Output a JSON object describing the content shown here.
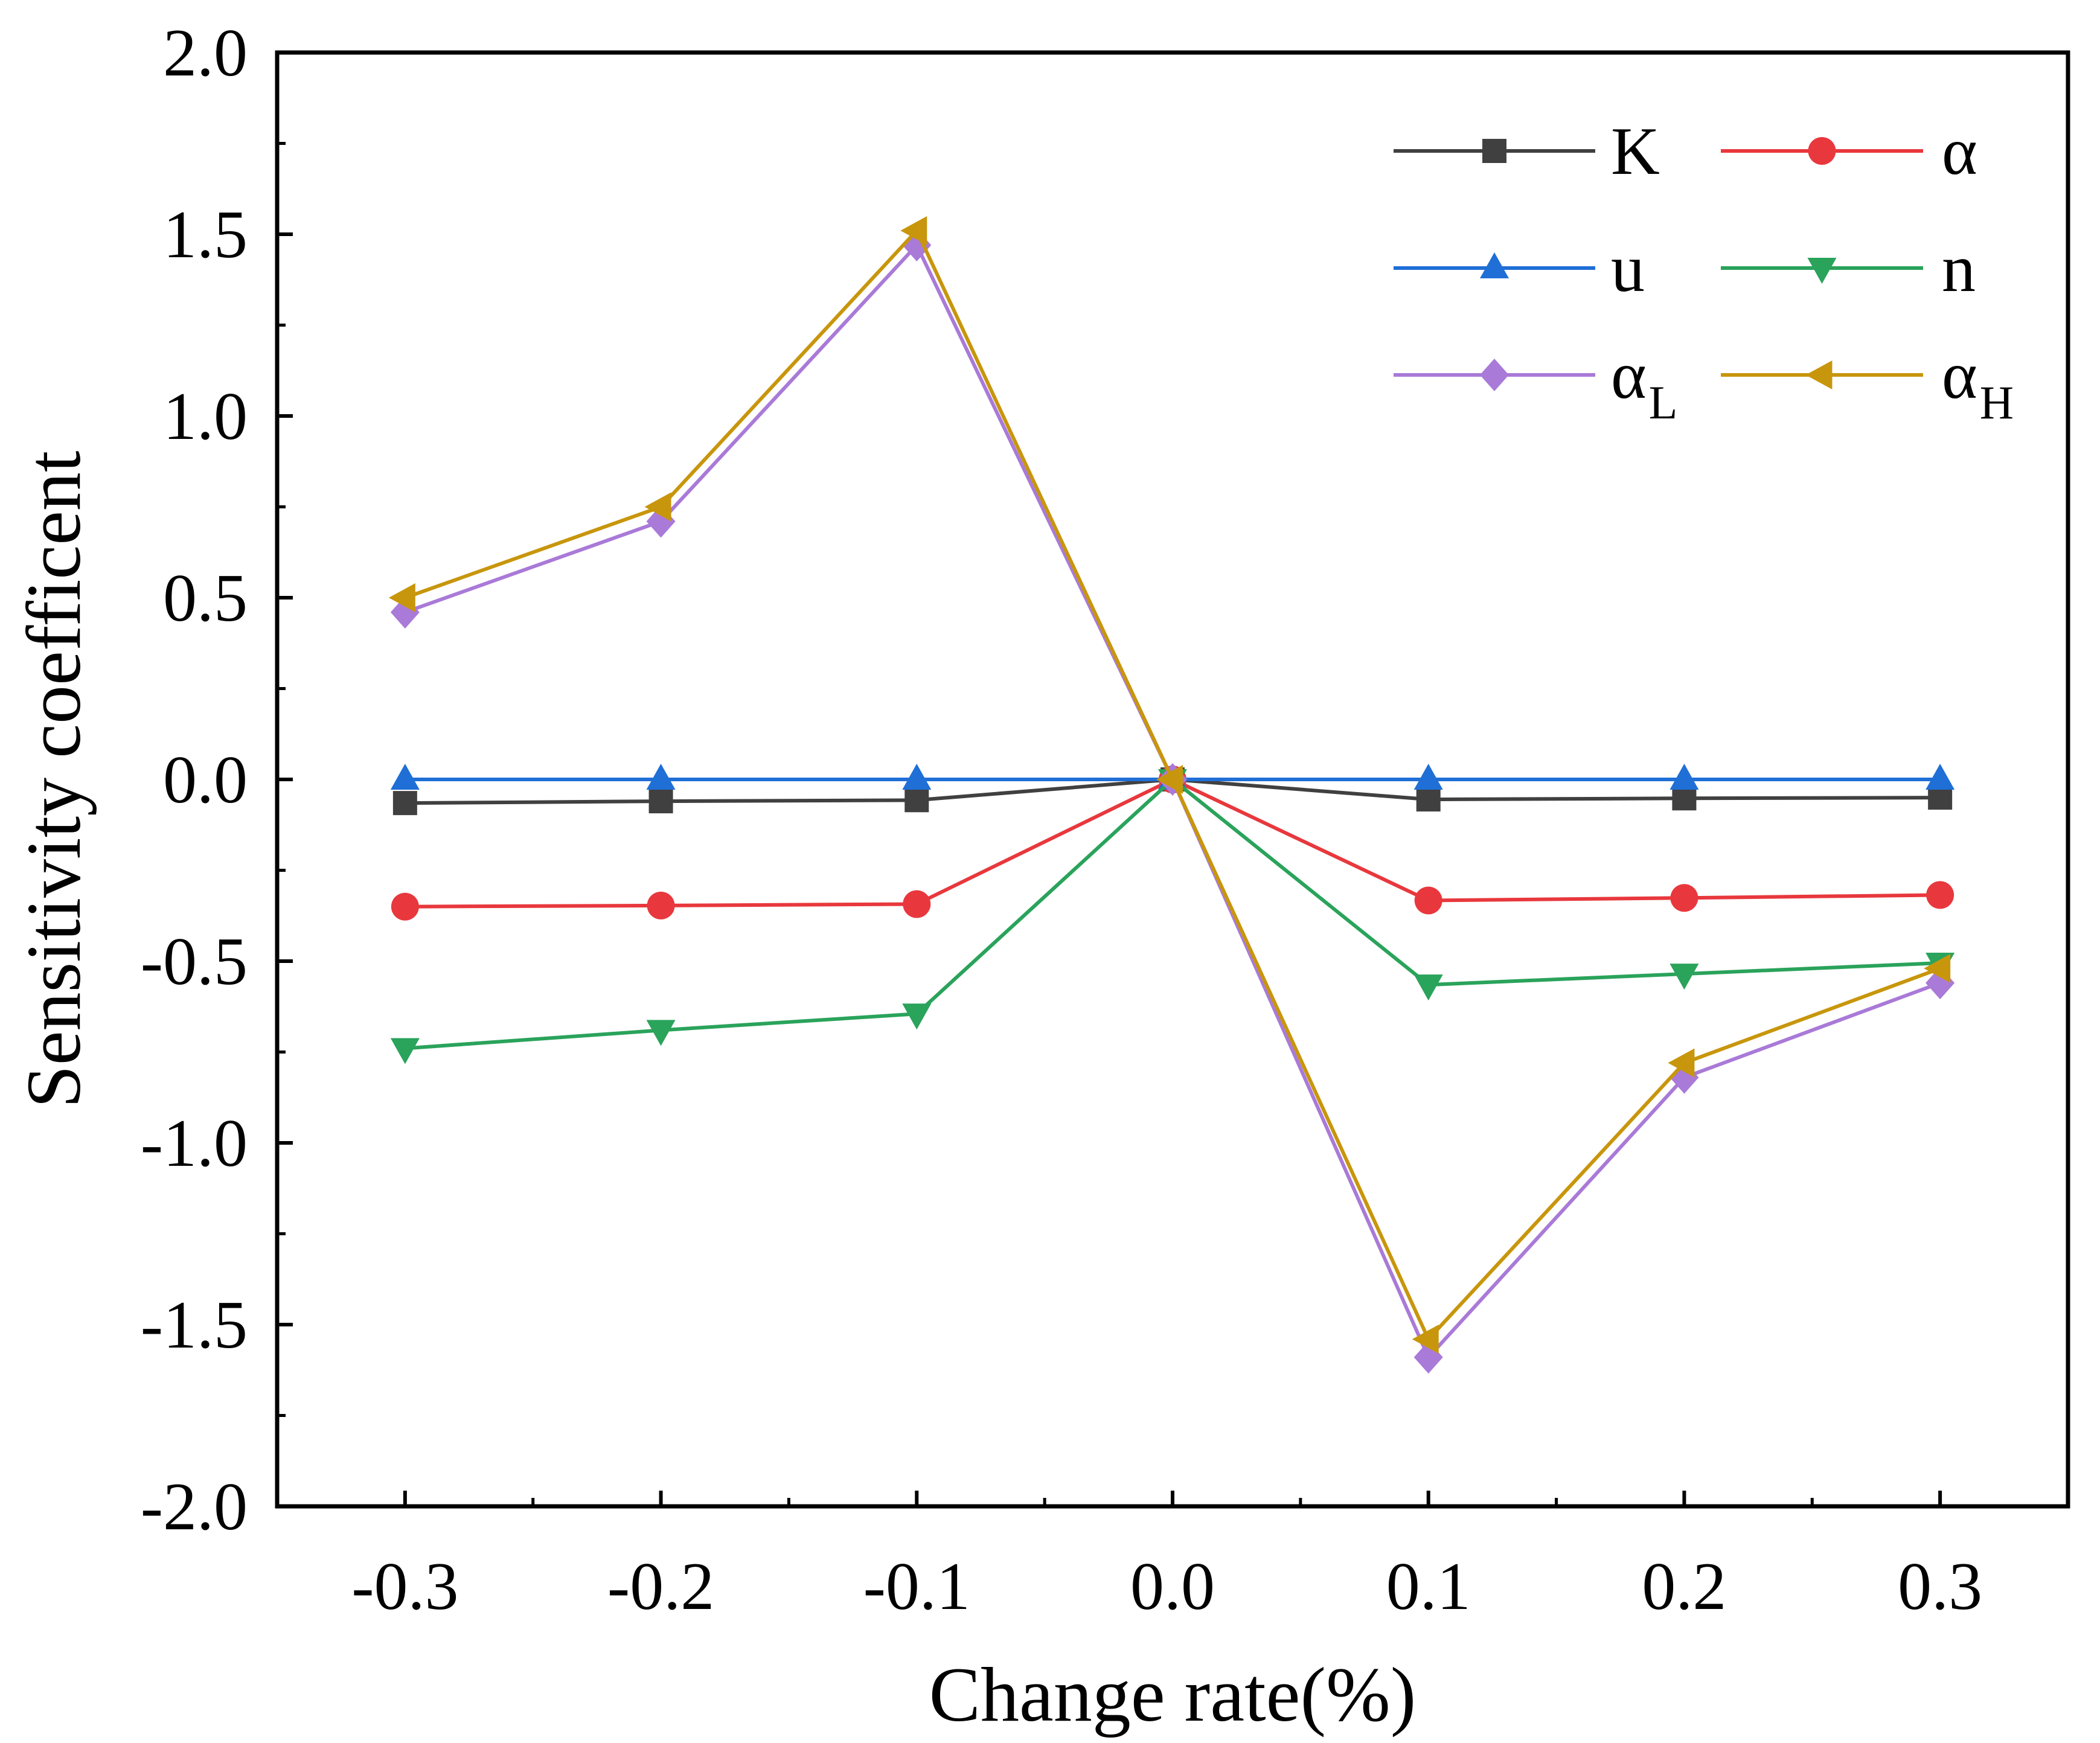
{
  "chart_data": {
    "type": "line",
    "title": "",
    "xlabel": "Change rate(%)",
    "ylabel": "Sensitivity coefficent",
    "x": [
      -0.3,
      -0.2,
      -0.1,
      0.0,
      0.1,
      0.2,
      0.3
    ],
    "x_tick_labels": [
      "-0.3",
      "-0.2",
      "-0.1",
      "0.0",
      "0.1",
      "0.2",
      "0.3"
    ],
    "y_tick_labels": [
      "2.0",
      "1.5",
      "1.0",
      "0.5",
      "0.0",
      "-0.5",
      "-1.0",
      "-1.5",
      "-2.0"
    ],
    "y_ticks": [
      2.0,
      1.5,
      1.0,
      0.5,
      0.0,
      -0.5,
      -1.0,
      -1.5,
      -2.0
    ],
    "xlim": [
      -0.35,
      0.35
    ],
    "ylim": [
      -2.0,
      2.0
    ],
    "grid": false,
    "legend_position": "top-right",
    "series": [
      {
        "name": "K",
        "sub": "",
        "color": "#404040",
        "marker": "square",
        "values": [
          -0.065,
          -0.06,
          -0.057,
          0.0,
          -0.055,
          -0.052,
          -0.05
        ]
      },
      {
        "name": "α",
        "sub": "",
        "color": "#e8383d",
        "marker": "circle",
        "values": [
          -0.35,
          -0.347,
          -0.343,
          0.0,
          -0.333,
          -0.326,
          -0.318
        ]
      },
      {
        "name": "u",
        "sub": "",
        "color": "#1f6fd6",
        "marker": "triangle-up",
        "values": [
          0.0,
          0.0,
          0.0,
          0.0,
          0.0,
          0.0,
          0.0
        ]
      },
      {
        "name": "n",
        "sub": "",
        "color": "#2aa35b",
        "marker": "triangle-down",
        "values": [
          -0.74,
          -0.69,
          -0.645,
          0.0,
          -0.565,
          -0.535,
          -0.505
        ]
      },
      {
        "name": "α",
        "sub": "L",
        "color": "#a97ad8",
        "marker": "diamond",
        "values": [
          0.46,
          0.71,
          1.47,
          0.0,
          -1.59,
          -0.82,
          -0.56
        ]
      },
      {
        "name": "α",
        "sub": "H",
        "color": "#c8960c",
        "marker": "triangle-left",
        "values": [
          0.5,
          0.75,
          1.51,
          0.0,
          -1.54,
          -0.78,
          -0.52
        ]
      }
    ]
  }
}
